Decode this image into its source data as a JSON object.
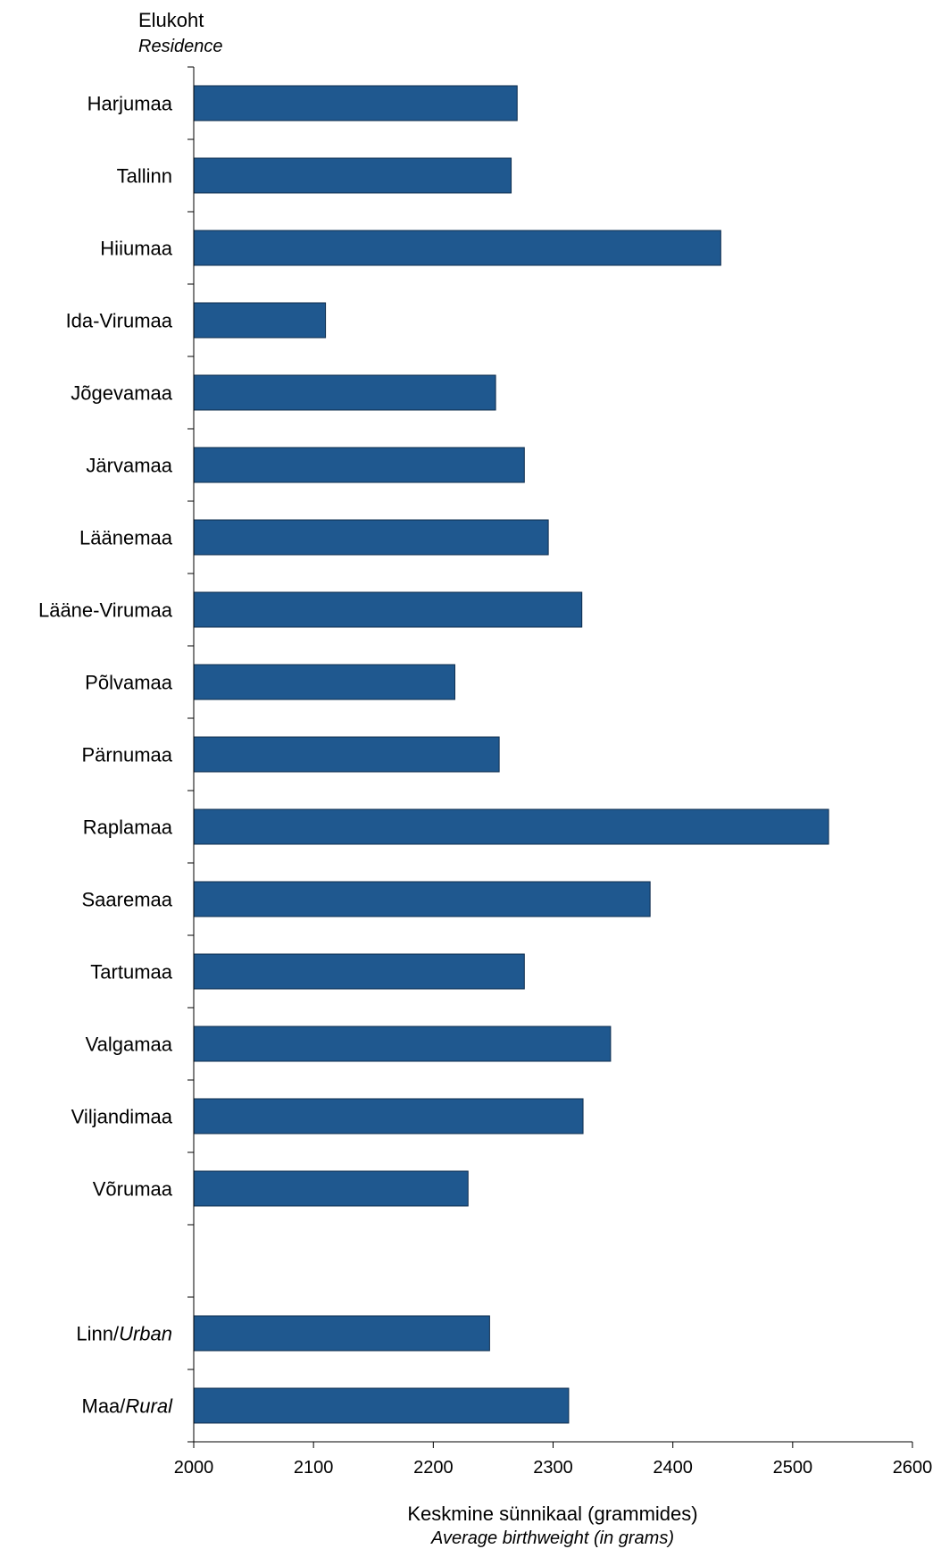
{
  "chart_data": {
    "type": "bar",
    "orientation": "horizontal",
    "ylabel": "Elukoht",
    "ylabel_en": "Residence",
    "xlabel": "Keskmine sünnikaal (grammides)",
    "xlabel_en": "Average birthweight (in grams)",
    "xlim": [
      2000,
      2600
    ],
    "xticks": [
      2000,
      2100,
      2200,
      2300,
      2400,
      2500,
      2600
    ],
    "grid": false,
    "bar_color": "#1f588f",
    "categories": [
      {
        "label": "Harjumaa",
        "value": 2270
      },
      {
        "label": "Tallinn",
        "value": 2265
      },
      {
        "label": "Hiiumaa",
        "value": 2440
      },
      {
        "label": "Ida-Virumaa",
        "value": 2110
      },
      {
        "label": "Jõgevamaa",
        "value": 2252
      },
      {
        "label": "Järvamaa",
        "value": 2276
      },
      {
        "label": "Läänemaa",
        "value": 2296
      },
      {
        "label": "Lääne-Virumaa",
        "value": 2324
      },
      {
        "label": "Põlvamaa",
        "value": 2218
      },
      {
        "label": "Pärnumaa",
        "value": 2255
      },
      {
        "label": "Raplamaa",
        "value": 2530
      },
      {
        "label": "Saaremaa",
        "value": 2381
      },
      {
        "label": "Tartumaa",
        "value": 2276
      },
      {
        "label": "Valgamaa",
        "value": 2348
      },
      {
        "label": "Viljandimaa",
        "value": 2325
      },
      {
        "label": "Võrumaa",
        "value": 2229
      },
      {
        "label": "",
        "value": null
      },
      {
        "label": "Linn",
        "label_en": "Urban",
        "value": 2247
      },
      {
        "label": "Maa",
        "label_en": "Rural",
        "value": 2313
      }
    ]
  }
}
